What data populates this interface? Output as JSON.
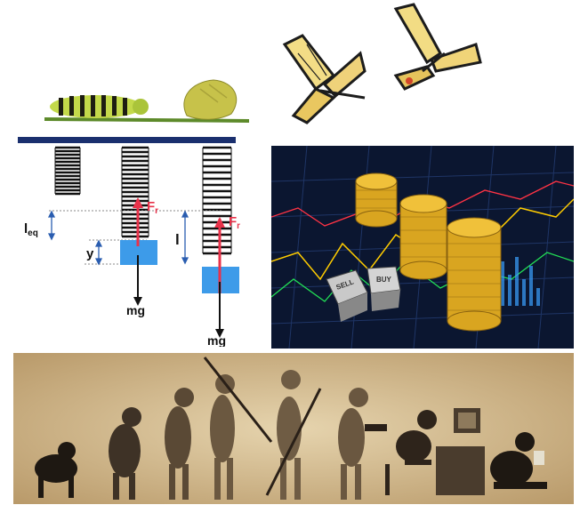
{
  "images": {
    "caterpillar": {
      "icon": "caterpillar-chrysalis-icon"
    },
    "butterflies": {
      "icon": "swallowtail-butterfly-icon"
    },
    "finance": {
      "icon": "coin-stacks-market-chart-icon"
    },
    "evolution": {
      "icon": "human-evolution-silhouette-icon"
    }
  },
  "spring_diagram": {
    "label_leq_main": "l",
    "label_leq_sub": "eq",
    "label_y": "y",
    "label_l": "l",
    "label_force_main": "F",
    "label_force_sub": "r",
    "label_weight_1": "mg",
    "label_weight_2": "mg"
  },
  "finance_panel": {
    "dice_1_text": "SELL",
    "dice_2_text": "BUY"
  },
  "colors": {
    "bar": "#1a2f6e",
    "force_arrow": "#e8324a",
    "mass_block": "#3d9be9",
    "dim_arrow": "#2a5db0",
    "parchment": "#d8c39a",
    "coin_gold": "#d9a520"
  }
}
